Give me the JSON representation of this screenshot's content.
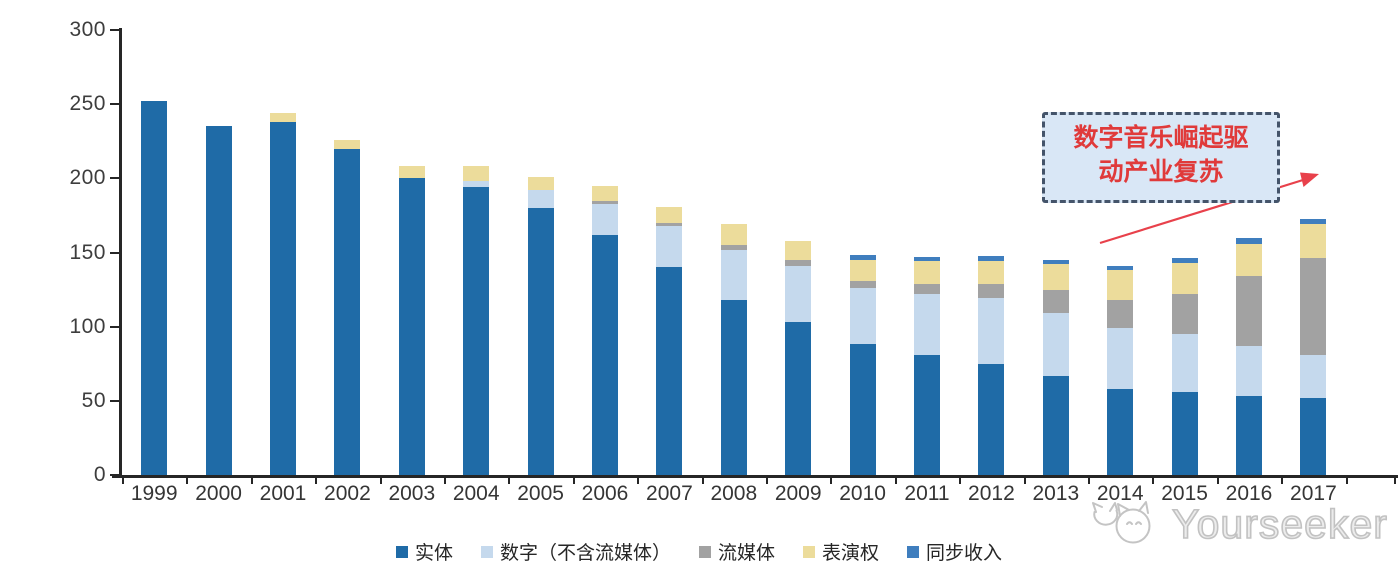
{
  "chart_data": {
    "type": "bar",
    "stacked": true,
    "categories": [
      "1999",
      "2000",
      "2001",
      "2002",
      "2003",
      "2004",
      "2005",
      "2006",
      "2007",
      "2008",
      "2009",
      "2010",
      "2011",
      "2012",
      "2013",
      "2014",
      "2015",
      "2016",
      "2017"
    ],
    "series": [
      {
        "key": "physical",
        "name": "实体",
        "color": "#1F6BA7",
        "values": [
          252,
          235,
          238,
          220,
          200,
          194,
          180,
          162,
          140,
          118,
          103,
          88,
          81,
          75,
          67,
          58,
          56,
          53,
          52
        ]
      },
      {
        "key": "digital-ex-streaming",
        "name": "数字（不含流媒体）",
        "color": "#C5D9ED",
        "values": [
          0,
          0,
          0,
          0,
          0,
          4,
          12,
          21,
          28,
          34,
          38,
          38,
          41,
          44,
          42,
          41,
          39,
          34,
          29
        ]
      },
      {
        "key": "streaming",
        "name": "流媒体",
        "color": "#A2A2A2",
        "values": [
          0,
          0,
          0,
          0,
          0,
          0,
          0,
          2,
          2,
          3,
          4,
          5,
          7,
          10,
          16,
          19,
          27,
          47,
          65
        ]
      },
      {
        "key": "performance-rights",
        "name": "表演权",
        "color": "#ECDC9B",
        "values": [
          0,
          0,
          6,
          6,
          8,
          10,
          9,
          10,
          11,
          14,
          13,
          14,
          15,
          15,
          17,
          20,
          21,
          22,
          23
        ]
      },
      {
        "key": "sync-revenue",
        "name": "同步收入",
        "color": "#3F7EBE",
        "values": [
          0,
          0,
          0,
          0,
          0,
          0,
          0,
          0,
          0,
          0,
          0,
          3,
          3,
          3.5,
          3,
          3,
          3.5,
          3.5,
          3.5
        ]
      }
    ],
    "ylim": [
      0,
      300
    ],
    "yticks": [
      0,
      50,
      100,
      150,
      200,
      250,
      300
    ],
    "grid": false,
    "legend_position": "bottom"
  },
  "annotation": {
    "line1": "数字音乐崛起驱",
    "line2": "动产业复苏",
    "text_color": "#E03A3A",
    "box_fill": "#D9E7F6",
    "box_border": "#44546A",
    "arrow_color": "#E8414B"
  },
  "watermark": {
    "text": "Yourseeker",
    "logo": "cat-logo-icon",
    "color": "#C2C2C2"
  },
  "axis": {
    "line_color": "#262626",
    "label_color": "#3d3d3d"
  }
}
